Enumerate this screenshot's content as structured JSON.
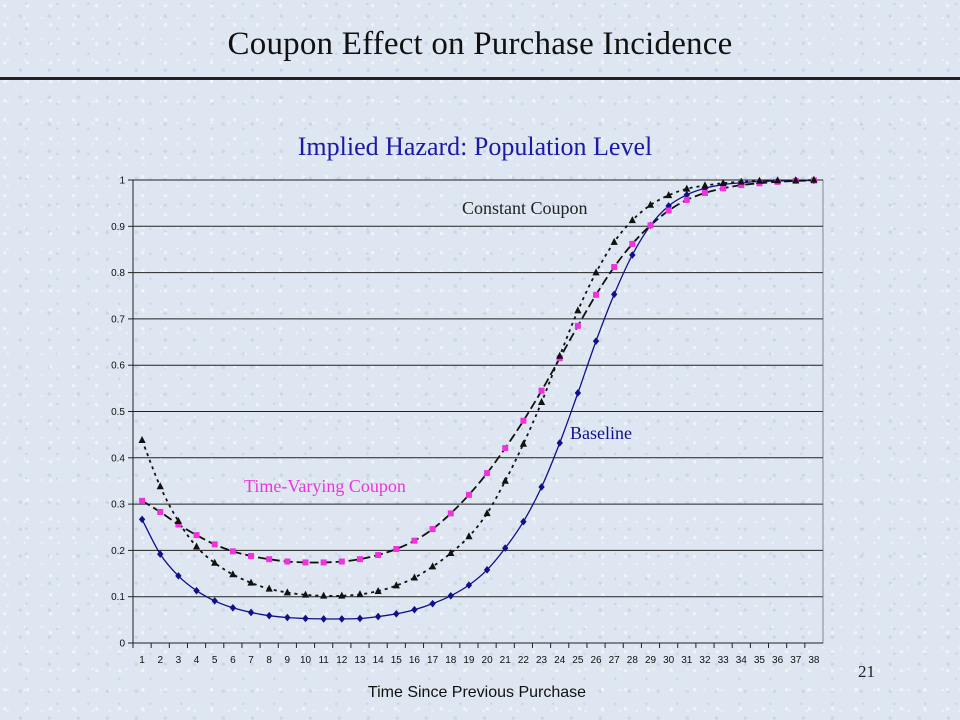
{
  "slide": {
    "title": "Coupon Effect on Purchase Incidence",
    "number": "21"
  },
  "chart_data": {
    "type": "line",
    "title": "Implied Hazard: Population Level",
    "xlabel": "Time Since Previous Purchase",
    "ylabel": "",
    "ylim": [
      0,
      1
    ],
    "yticks": [
      "0",
      "0.1",
      "0.2",
      "0.3",
      "0.4",
      "0.5",
      "0.6",
      "0.7",
      "0.8",
      "0.9",
      "1"
    ],
    "grid": true,
    "x": [
      1,
      2,
      3,
      4,
      5,
      6,
      7,
      8,
      9,
      10,
      11,
      12,
      13,
      14,
      15,
      16,
      17,
      18,
      19,
      20,
      21,
      22,
      23,
      24,
      25,
      26,
      27,
      28,
      29,
      30,
      31,
      32,
      33,
      34,
      35,
      36,
      37,
      38
    ],
    "series": [
      {
        "name": "Baseline",
        "marker": "diamond",
        "line": "solid",
        "color": "#10108a",
        "values": [
          0.267,
          0.192,
          0.145,
          0.113,
          0.091,
          0.076,
          0.066,
          0.059,
          0.055,
          0.053,
          0.052,
          0.052,
          0.053,
          0.057,
          0.063,
          0.072,
          0.085,
          0.102,
          0.125,
          0.158,
          0.205,
          0.262,
          0.337,
          0.432,
          0.54,
          0.652,
          0.753,
          0.838,
          0.902,
          0.944,
          0.968,
          0.982,
          0.99,
          0.994,
          0.997,
          0.998,
          0.999,
          0.999
        ]
      },
      {
        "name": "Time-Varying Coupon",
        "marker": "square",
        "line": "dashed",
        "color": "#ee33dd",
        "values": [
          0.307,
          0.283,
          0.256,
          0.233,
          0.213,
          0.198,
          0.188,
          0.181,
          0.176,
          0.174,
          0.174,
          0.176,
          0.181,
          0.19,
          0.203,
          0.221,
          0.246,
          0.28,
          0.32,
          0.367,
          0.421,
          0.48,
          0.545,
          0.615,
          0.685,
          0.752,
          0.812,
          0.862,
          0.902,
          0.934,
          0.957,
          0.972,
          0.982,
          0.989,
          0.993,
          0.996,
          0.998,
          0.999
        ]
      },
      {
        "name": "Constant Coupon",
        "marker": "triangle",
        "line": "dotted",
        "color": "#111111",
        "values": [
          0.438,
          0.338,
          0.263,
          0.208,
          0.173,
          0.148,
          0.13,
          0.117,
          0.109,
          0.104,
          0.102,
          0.102,
          0.105,
          0.112,
          0.124,
          0.141,
          0.165,
          0.194,
          0.23,
          0.28,
          0.35,
          0.43,
          0.52,
          0.62,
          0.718,
          0.8,
          0.866,
          0.913,
          0.946,
          0.967,
          0.981,
          0.988,
          0.993,
          0.996,
          0.998,
          0.999,
          0.999,
          1.0
        ]
      }
    ],
    "annotations": [
      "Constant Coupon",
      "Baseline",
      "Time-Varying Coupon"
    ],
    "annotation_colors": [
      "#222222",
      "#10108a",
      "#ee33dd"
    ]
  }
}
